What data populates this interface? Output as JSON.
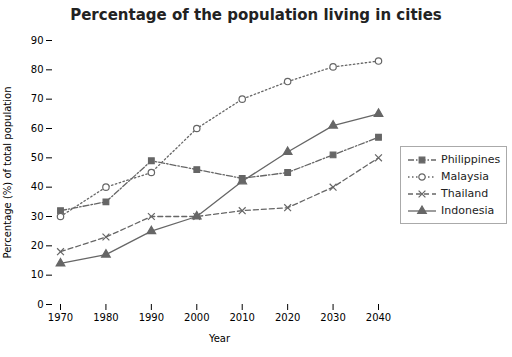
{
  "chart_data": {
    "type": "line",
    "title": "Percentage of the population living in cities",
    "x_label": "Year",
    "y_label": "Percentage (%) of total population",
    "x": [
      1970,
      1980,
      1990,
      2000,
      2010,
      2020,
      2030,
      2040
    ],
    "series": [
      {
        "name": "Philippines",
        "color": "#666666",
        "values": [
          32,
          35,
          49,
          46,
          43,
          45,
          51,
          57
        ],
        "marker": "square",
        "line_style": "dashdot"
      },
      {
        "name": "Malaysia",
        "color": "#666666",
        "values": [
          30,
          40,
          45,
          60,
          70,
          76,
          81,
          83
        ],
        "marker": "hollow-circle",
        "line_style": "dotted"
      },
      {
        "name": "Thailand",
        "color": "#666666",
        "values": [
          18,
          23,
          30,
          30,
          32,
          33,
          40,
          50
        ],
        "marker": "x",
        "line_style": "dashed"
      },
      {
        "name": "Indonesia",
        "color": "#666666",
        "values": [
          14,
          17,
          25,
          30,
          42,
          52,
          61,
          65
        ],
        "marker": "triangle",
        "line_style": "solid"
      }
    ],
    "xlim": [
      1970,
      2040
    ],
    "xticks": [
      1970,
      1980,
      1990,
      2000,
      2010,
      2020,
      2030,
      2040
    ],
    "ylim": [
      0,
      90
    ],
    "yticks": [
      0,
      10,
      20,
      30,
      40,
      50,
      60,
      70,
      80,
      90
    ],
    "grid": false,
    "legend": "right"
  }
}
